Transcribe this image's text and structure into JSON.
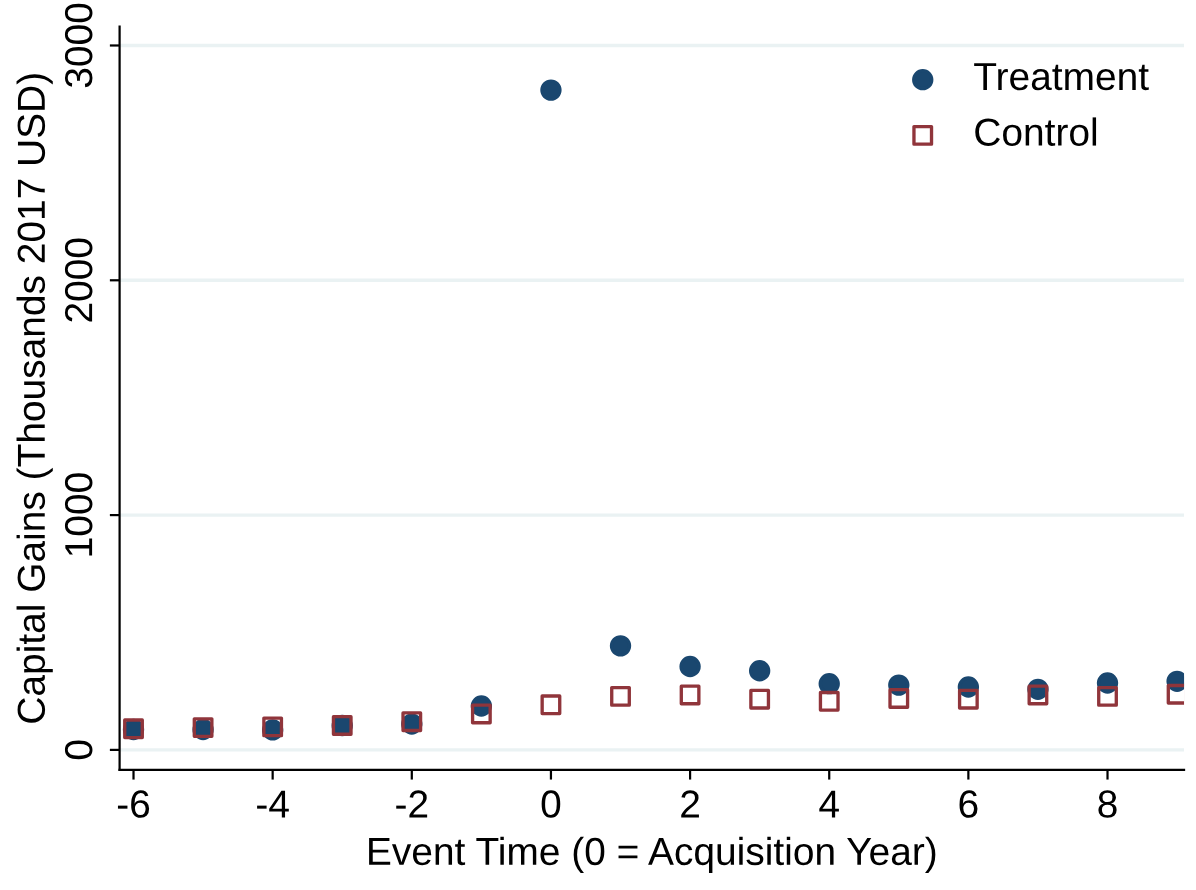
{
  "chart_data": {
    "type": "scatter",
    "xlabel": "Event Time (0 = Acquisition Year)",
    "ylabel": "Capital Gains (Thousands 2017 USD)",
    "x": [
      -6,
      -5,
      -4,
      -3,
      -2,
      -1,
      0,
      1,
      2,
      3,
      4,
      5,
      6,
      7,
      8,
      9
    ],
    "series": [
      {
        "name": "Treatment",
        "color": "#1a476f",
        "marker": "circle",
        "values": [
          87,
          87,
          85,
          104,
          110,
          187,
          2810,
          443,
          355,
          337,
          282,
          276,
          268,
          258,
          285,
          292
        ]
      },
      {
        "name": "Control",
        "color": "#90353b",
        "marker": "square",
        "values": [
          90,
          95,
          98,
          104,
          120,
          153,
          192,
          228,
          234,
          216,
          207,
          219,
          216,
          234,
          228,
          237
        ]
      }
    ],
    "xlim": [
      -6.2,
      9.1
    ],
    "ylim": [
      -85,
      3080
    ],
    "xticks": [
      -6,
      -4,
      -2,
      0,
      2,
      4,
      6,
      8
    ],
    "yticks": [
      0,
      1000,
      2000,
      3000
    ],
    "grid": "y",
    "legend": "top right"
  }
}
